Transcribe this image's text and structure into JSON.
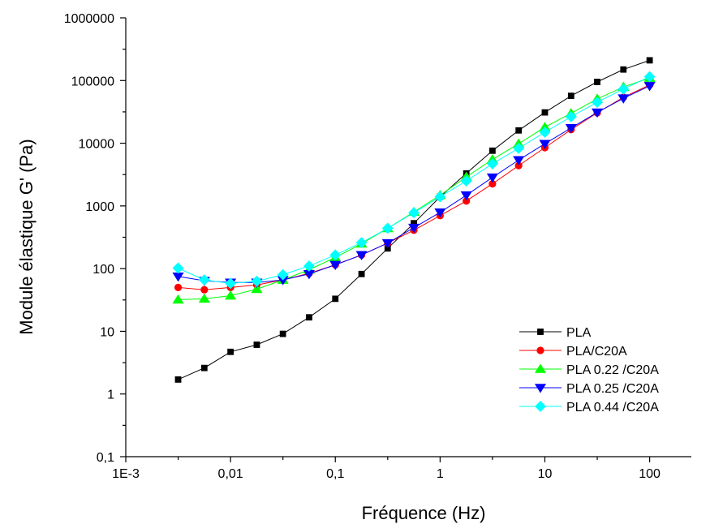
{
  "chart_data": {
    "type": "line",
    "xlabel": "Fréquence (Hz)",
    "ylabel": "Module élastique G' (Pa)",
    "x_scale": "log",
    "y_scale": "log",
    "xlim": [
      0.001,
      250
    ],
    "ylim": [
      0.1,
      1000000
    ],
    "x_ticks": [
      {
        "value": 0.001,
        "label": "1E-3"
      },
      {
        "value": 0.01,
        "label": "0,01"
      },
      {
        "value": 0.1,
        "label": "0,1"
      },
      {
        "value": 1,
        "label": "1"
      },
      {
        "value": 10,
        "label": "10"
      },
      {
        "value": 100,
        "label": "100"
      }
    ],
    "y_ticks": [
      {
        "value": 0.1,
        "label": "0,1"
      },
      {
        "value": 1,
        "label": "1"
      },
      {
        "value": 10,
        "label": "10"
      },
      {
        "value": 100,
        "label": "100"
      },
      {
        "value": 1000,
        "label": "1000"
      },
      {
        "value": 10000,
        "label": "10000"
      },
      {
        "value": 100000,
        "label": "100000"
      },
      {
        "value": 1000000,
        "label": "1000000"
      }
    ],
    "grid": false,
    "legend_position": "bottom-right",
    "x": [
      0.00316,
      0.00562,
      0.01,
      0.0178,
      0.0316,
      0.0562,
      0.1,
      0.178,
      0.316,
      0.562,
      1,
      1.78,
      3.16,
      5.62,
      10,
      17.8,
      31.6,
      56.2,
      100
    ],
    "series": [
      {
        "name": "PLA",
        "color": "#000000",
        "marker": "square",
        "values": [
          1.7,
          2.6,
          4.7,
          6.1,
          9.1,
          16.7,
          33,
          82,
          210,
          530,
          1400,
          3300,
          7600,
          16000,
          31000,
          57000,
          95000,
          150000,
          210000
        ]
      },
      {
        "name": "PLA/C20A",
        "color": "#ff0000",
        "marker": "circle",
        "values": [
          50,
          46,
          50,
          55,
          66,
          84,
          115,
          165,
          255,
          410,
          700,
          1200,
          2250,
          4400,
          8500,
          16500,
          30500,
          54000,
          85000
        ]
      },
      {
        "name": "PLA 0.22 /C20A",
        "color": "#00ff00",
        "marker": "triangle-up",
        "values": [
          32,
          33,
          37,
          47,
          66,
          96,
          150,
          250,
          440,
          800,
          1480,
          2900,
          5500,
          9800,
          18000,
          30000,
          51000,
          79000,
          110000
        ]
      },
      {
        "name": "PLA 0.25 /C20A",
        "color": "#0000ff",
        "marker": "triangle-down",
        "values": [
          75,
          64,
          60,
          60,
          66,
          82,
          115,
          165,
          255,
          450,
          790,
          1480,
          2850,
          5400,
          9800,
          17500,
          31000,
          52000,
          82000
        ]
      },
      {
        "name": "PLA 0.44 /C20A",
        "color": "#00ffff",
        "marker": "diamond",
        "values": [
          102,
          66,
          58,
          63,
          80,
          110,
          165,
          260,
          440,
          780,
          1400,
          2500,
          4700,
          8300,
          15000,
          26500,
          45000,
          73000,
          115000
        ]
      }
    ]
  }
}
